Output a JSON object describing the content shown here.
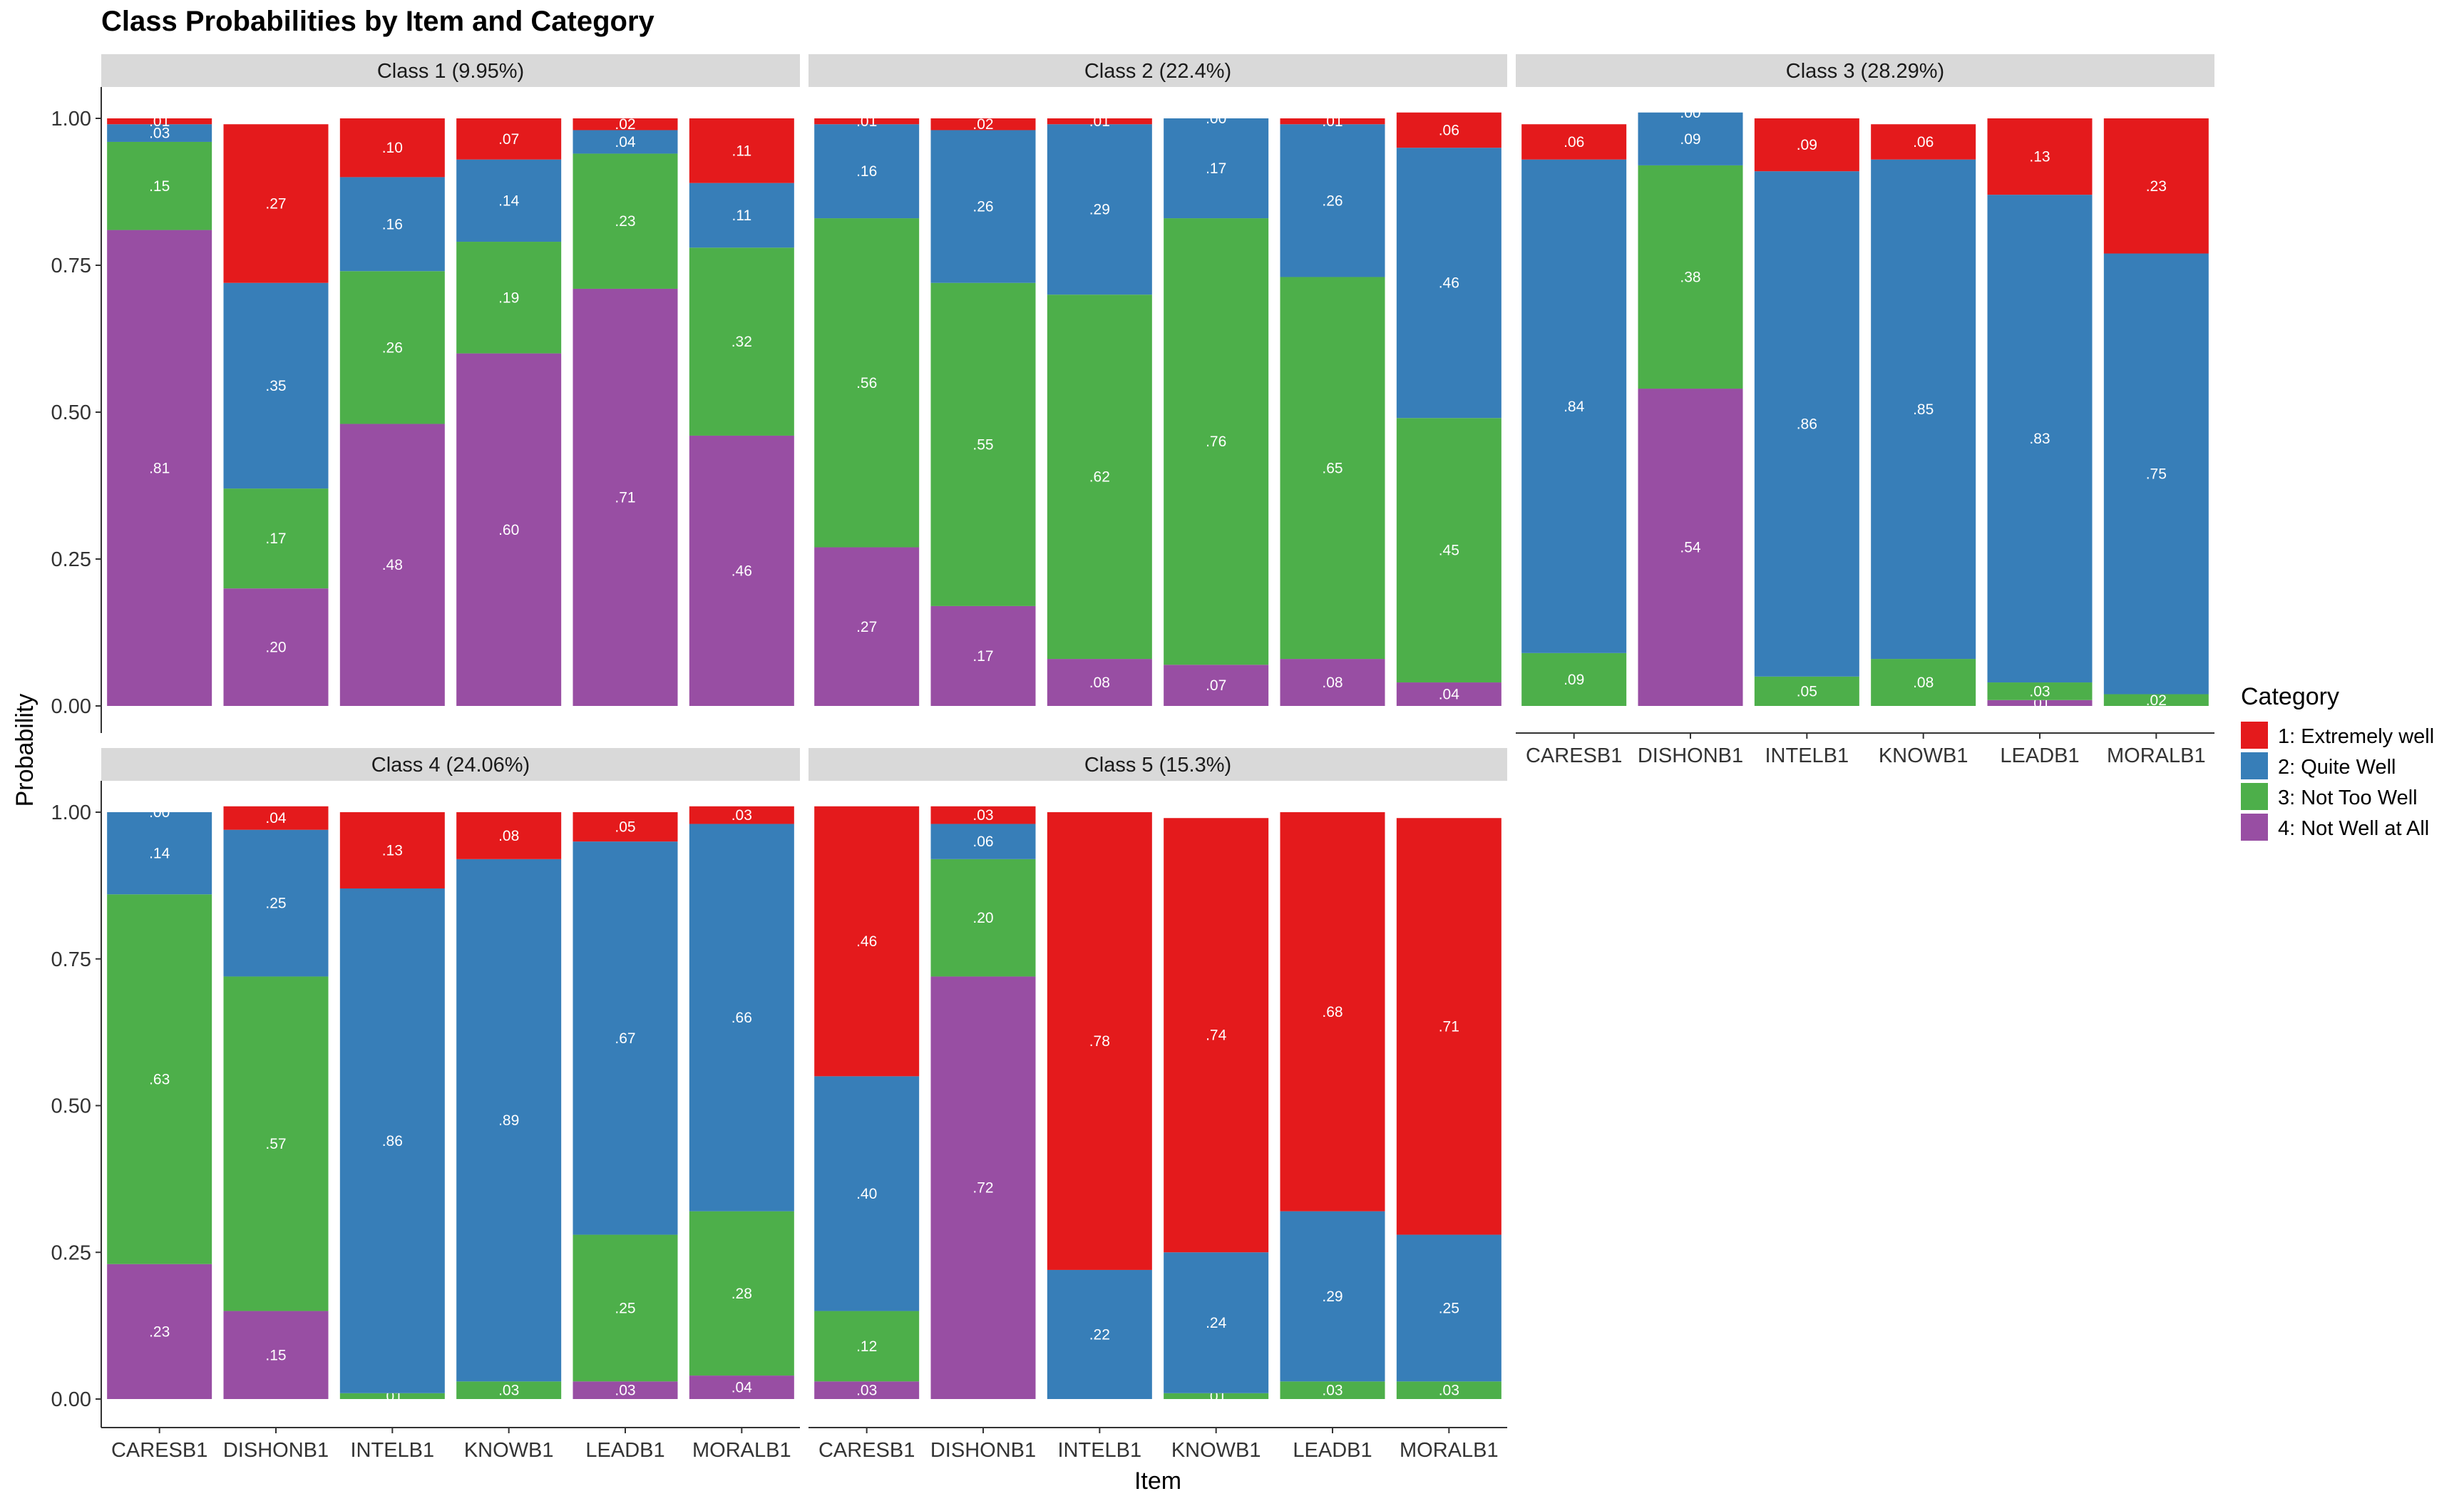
{
  "chart_data": {
    "type": "bar",
    "title": "Class Probabilities by Item and Category",
    "xlabel": "Item",
    "ylabel": "Probability",
    "ylim": [
      0,
      1
    ],
    "y_ticks": [
      "0.00",
      "0.25",
      "0.50",
      "0.75",
      "1.00"
    ],
    "categories": [
      "CARESB1",
      "DISHONB1",
      "INTELB1",
      "KNOWB1",
      "LEADB1",
      "MORALB1"
    ],
    "legend": {
      "title": "Category",
      "position": "right",
      "entries": [
        {
          "name": "1: Extremely well",
          "color": "#E41A1C"
        },
        {
          "name": "2: Quite Well",
          "color": "#377EB8"
        },
        {
          "name": "3: Not Too Well",
          "color": "#4DAF4A"
        },
        {
          "name": "4: Not Well at All",
          "color": "#984EA3"
        }
      ]
    },
    "grid": false,
    "panels": [
      {
        "label": "Class 1 (9.95%)",
        "series": [
          {
            "name": "1: Extremely well",
            "values": [
              0.01,
              0.27,
              0.1,
              0.07,
              0.02,
              0.11
            ],
            "labels": [
              ".01",
              ".27",
              ".10",
              ".07",
              ".02",
              ".11"
            ]
          },
          {
            "name": "2: Quite Well",
            "values": [
              0.03,
              0.35,
              0.16,
              0.14,
              0.04,
              0.11
            ],
            "labels": [
              ".03",
              ".35",
              ".16",
              ".14",
              ".04",
              ".11"
            ]
          },
          {
            "name": "3: Not Too Well",
            "values": [
              0.15,
              0.17,
              0.26,
              0.19,
              0.23,
              0.32
            ],
            "labels": [
              ".15",
              ".17",
              ".26",
              ".19",
              ".23",
              ".32"
            ]
          },
          {
            "name": "4: Not Well at All",
            "values": [
              0.81,
              0.2,
              0.48,
              0.6,
              0.71,
              0.46
            ],
            "labels": [
              ".81",
              ".20",
              ".48",
              ".60",
              ".71",
              ".46"
            ]
          }
        ]
      },
      {
        "label": "Class 2 (22.4%)",
        "series": [
          {
            "name": "1: Extremely well",
            "values": [
              0.01,
              0.02,
              0.01,
              0.0,
              0.01,
              0.06
            ],
            "labels": [
              ".01",
              ".02",
              ".01",
              ".00",
              ".01",
              ".06"
            ]
          },
          {
            "name": "2: Quite Well",
            "values": [
              0.16,
              0.26,
              0.29,
              0.17,
              0.26,
              0.46
            ],
            "labels": [
              ".16",
              ".26",
              ".29",
              ".17",
              ".26",
              ".46"
            ]
          },
          {
            "name": "3: Not Too Well",
            "values": [
              0.56,
              0.55,
              0.62,
              0.76,
              0.65,
              0.45
            ],
            "labels": [
              ".56",
              ".55",
              ".62",
              ".76",
              ".65",
              ".45"
            ]
          },
          {
            "name": "4: Not Well at All",
            "values": [
              0.27,
              0.17,
              0.08,
              0.07,
              0.08,
              0.04
            ],
            "labels": [
              ".27",
              ".17",
              ".08",
              ".07",
              ".08",
              ".04"
            ]
          }
        ]
      },
      {
        "label": "Class 3 (28.29%)",
        "series": [
          {
            "name": "1: Extremely well",
            "values": [
              0.06,
              0.0,
              0.09,
              0.06,
              0.13,
              0.23
            ],
            "labels": [
              ".06",
              ".00",
              ".09",
              ".06",
              ".13",
              ".23"
            ]
          },
          {
            "name": "2: Quite Well",
            "values": [
              0.84,
              0.09,
              0.86,
              0.85,
              0.83,
              0.75
            ],
            "labels": [
              ".84",
              ".09",
              ".86",
              ".85",
              ".83",
              ".75"
            ]
          },
          {
            "name": "3: Not Too Well",
            "values": [
              0.09,
              0.38,
              0.05,
              0.08,
              0.03,
              0.02
            ],
            "labels": [
              ".09",
              ".38",
              ".05",
              ".08",
              ".03",
              ".02"
            ]
          },
          {
            "name": "4: Not Well at All",
            "values": [
              0.0,
              0.54,
              0.0,
              0.0,
              0.01,
              0.0
            ],
            "labels": [
              ".00",
              ".54",
              ".00",
              ".00",
              ".01",
              ".00"
            ]
          }
        ]
      },
      {
        "label": "Class 4 (24.06%)",
        "series": [
          {
            "name": "1: Extremely well",
            "values": [
              0.0,
              0.04,
              0.13,
              0.08,
              0.05,
              0.03
            ],
            "labels": [
              ".00",
              ".04",
              ".13",
              ".08",
              ".05",
              ".03"
            ]
          },
          {
            "name": "2: Quite Well",
            "values": [
              0.14,
              0.25,
              0.86,
              0.89,
              0.67,
              0.66
            ],
            "labels": [
              ".14",
              ".25",
              ".86",
              ".89",
              ".67",
              ".66"
            ]
          },
          {
            "name": "3: Not Too Well",
            "values": [
              0.63,
              0.57,
              0.01,
              0.03,
              0.25,
              0.28
            ],
            "labels": [
              ".63",
              ".57",
              ".01",
              ".03",
              ".25",
              ".28"
            ]
          },
          {
            "name": "4: Not Well at All",
            "values": [
              0.23,
              0.15,
              0.0,
              0.0,
              0.03,
              0.04
            ],
            "labels": [
              ".23",
              ".15",
              ".00",
              ".00",
              ".03",
              ".04"
            ]
          }
        ]
      },
      {
        "label": "Class 5 (15.3%)",
        "series": [
          {
            "name": "1: Extremely well",
            "values": [
              0.46,
              0.03,
              0.78,
              0.74,
              0.68,
              0.71
            ],
            "labels": [
              ".46",
              ".03",
              ".78",
              ".74",
              ".68",
              ".71"
            ]
          },
          {
            "name": "2: Quite Well",
            "values": [
              0.4,
              0.06,
              0.22,
              0.24,
              0.29,
              0.25
            ],
            "labels": [
              ".40",
              ".06",
              ".22",
              ".24",
              ".29",
              ".25"
            ]
          },
          {
            "name": "3: Not Too Well",
            "values": [
              0.12,
              0.2,
              0.0,
              0.01,
              0.03,
              0.03
            ],
            "labels": [
              ".12",
              ".20",
              ".00",
              ".01",
              ".03",
              ".03"
            ]
          },
          {
            "name": "4: Not Well at All",
            "values": [
              0.03,
              0.72,
              0.0,
              0.0,
              0.0,
              0.0
            ],
            "labels": [
              ".03",
              ".72",
              ".00",
              ".00",
              ".00",
              ".00"
            ]
          }
        ]
      }
    ]
  }
}
